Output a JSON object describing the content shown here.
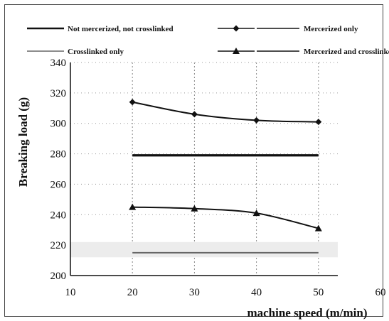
{
  "chart_data": {
    "type": "line",
    "title": "",
    "xlabel": "machine speed (m/min)",
    "ylabel": "Breaking load (g)",
    "xlim": [
      10,
      60
    ],
    "ylim": [
      200,
      340
    ],
    "xticks": [
      "10",
      "20",
      "30",
      "40",
      "50",
      "60"
    ],
    "yticks": [
      "200",
      "220",
      "240",
      "260",
      "280",
      "300",
      "320",
      "340"
    ],
    "grid": "dotted vertical and horizontal",
    "legend_position": "top",
    "x": [
      20,
      30,
      40,
      50
    ],
    "series": [
      {
        "name": "Not mercerized, not crosslinked",
        "values": [
          279,
          279,
          279,
          279
        ],
        "color": "#111111",
        "marker": "none",
        "style": "thick"
      },
      {
        "name": "Mercerized only",
        "values": [
          314,
          306,
          302,
          301
        ],
        "color": "#111111",
        "marker": "diamond",
        "style": "normal"
      },
      {
        "name": "Crosslinked only",
        "values": [
          215,
          215,
          215,
          215
        ],
        "color": "#666666",
        "marker": "none",
        "style": "normal"
      },
      {
        "name": "Mercerized and crosslinked",
        "values": [
          245,
          244,
          241,
          231
        ],
        "color": "#111111",
        "marker": "triangle",
        "style": "normal"
      }
    ]
  }
}
